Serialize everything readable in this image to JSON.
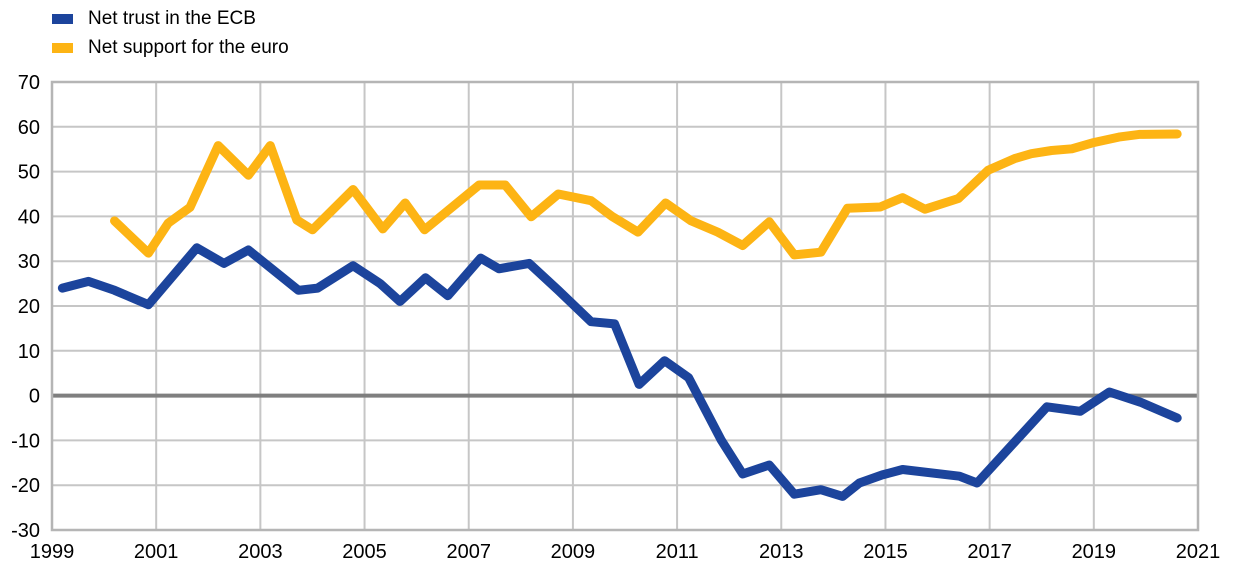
{
  "chart_data": {
    "type": "line",
    "title": "",
    "legend_position": "top-left",
    "grid": true,
    "colors": {
      "background": "#ffffff",
      "grid": "#c6c6c6",
      "border": "#b5b5b5",
      "zero_line": "#7f7f7f",
      "text": "#000000",
      "blue": "#1c449c",
      "yellow": "#fdb414"
    },
    "legend": [
      {
        "id": "net-trust-ecb",
        "label": "Net trust in the ECB",
        "color": "#1c449c"
      },
      {
        "id": "net-support-euro",
        "label": "Net support for the euro",
        "color": "#fdb414"
      }
    ],
    "x_axis": {
      "range": [
        1999,
        2021
      ],
      "ticks": [
        {
          "value": 1999,
          "label": "1999"
        },
        {
          "value": 2001,
          "label": "2001"
        },
        {
          "value": 2003,
          "label": "2003"
        },
        {
          "value": 2005,
          "label": "2005"
        },
        {
          "value": 2007,
          "label": "2007"
        },
        {
          "value": 2009,
          "label": "2009"
        },
        {
          "value": 2011,
          "label": "2011"
        },
        {
          "value": 2013,
          "label": "2013"
        },
        {
          "value": 2015,
          "label": "2015"
        },
        {
          "value": 2017,
          "label": "2017"
        },
        {
          "value": 2019,
          "label": "2019"
        },
        {
          "value": 2021,
          "label": "2021"
        }
      ]
    },
    "y_axis": {
      "range": [
        -30,
        70
      ],
      "ticks": [
        {
          "value": 70,
          "label": "70"
        },
        {
          "value": 60,
          "label": "60"
        },
        {
          "value": 50,
          "label": "50"
        },
        {
          "value": 40,
          "label": "40"
        },
        {
          "value": 30,
          "label": "30"
        },
        {
          "value": 20,
          "label": "20"
        },
        {
          "value": 10,
          "label": "10"
        },
        {
          "value": 0,
          "label": "0"
        },
        {
          "value": -10,
          "label": "-10"
        },
        {
          "value": -20,
          "label": "-20"
        },
        {
          "value": -30,
          "label": "-30"
        }
      ]
    },
    "series": [
      {
        "id": "net-trust-ecb",
        "name": "Net trust in the ECB",
        "color": "#1c449c",
        "points": [
          [
            1999.2,
            24
          ],
          [
            1999.7,
            25.5
          ],
          [
            2000.2,
            23.5
          ],
          [
            2000.85,
            20.3
          ],
          [
            2001.78,
            33
          ],
          [
            2002.3,
            29.5
          ],
          [
            2002.77,
            32.5
          ],
          [
            2003.73,
            23.5
          ],
          [
            2004.1,
            24
          ],
          [
            2004.78,
            29
          ],
          [
            2005.3,
            25
          ],
          [
            2005.68,
            21
          ],
          [
            2006.17,
            26.3
          ],
          [
            2006.6,
            22.3
          ],
          [
            2007.23,
            30.7
          ],
          [
            2007.58,
            28.3
          ],
          [
            2008.16,
            29.5
          ],
          [
            2008.72,
            23.5
          ],
          [
            2009.35,
            16.5
          ],
          [
            2009.8,
            16
          ],
          [
            2010.27,
            2.5
          ],
          [
            2010.76,
            7.8
          ],
          [
            2011.22,
            4
          ],
          [
            2011.85,
            -10
          ],
          [
            2012.26,
            -17.5
          ],
          [
            2012.77,
            -15.5
          ],
          [
            2013.25,
            -22
          ],
          [
            2013.76,
            -21
          ],
          [
            2014.18,
            -22.5
          ],
          [
            2014.5,
            -19.5
          ],
          [
            2014.94,
            -17.7
          ],
          [
            2015.33,
            -16.5
          ],
          [
            2016.42,
            -18
          ],
          [
            2016.76,
            -19.5
          ],
          [
            2018.1,
            -2.5
          ],
          [
            2018.74,
            -3.5
          ],
          [
            2019.3,
            0.8
          ],
          [
            2019.9,
            -1.5
          ],
          [
            2020.6,
            -5
          ]
        ]
      },
      {
        "id": "net-support-euro",
        "name": "Net support for the euro",
        "color": "#fdb414",
        "points": [
          [
            2000.2,
            39
          ],
          [
            2000.85,
            31.8
          ],
          [
            2001.23,
            38.5
          ],
          [
            2001.65,
            42
          ],
          [
            2002.19,
            55.8
          ],
          [
            2002.77,
            49.2
          ],
          [
            2003.19,
            55.8
          ],
          [
            2003.7,
            39.2
          ],
          [
            2004.0,
            37
          ],
          [
            2004.78,
            46
          ],
          [
            2005.35,
            37.2
          ],
          [
            2005.78,
            43
          ],
          [
            2006.15,
            37
          ],
          [
            2007.2,
            47
          ],
          [
            2007.7,
            47
          ],
          [
            2008.2,
            39.9
          ],
          [
            2008.72,
            45
          ],
          [
            2009.35,
            43.5
          ],
          [
            2009.75,
            40
          ],
          [
            2010.25,
            36.5
          ],
          [
            2010.78,
            43
          ],
          [
            2011.27,
            39
          ],
          [
            2011.78,
            36.5
          ],
          [
            2012.26,
            33.5
          ],
          [
            2012.77,
            38.8
          ],
          [
            2013.25,
            31.4
          ],
          [
            2013.76,
            32
          ],
          [
            2014.27,
            41.8
          ],
          [
            2014.9,
            42.1
          ],
          [
            2015.33,
            44.2
          ],
          [
            2015.76,
            41.6
          ],
          [
            2016.4,
            44
          ],
          [
            2016.97,
            50.3
          ],
          [
            2017.48,
            52.9
          ],
          [
            2017.8,
            54
          ],
          [
            2018.19,
            54.7
          ],
          [
            2018.58,
            55.1
          ],
          [
            2018.97,
            56.4
          ],
          [
            2019.48,
            57.7
          ],
          [
            2019.87,
            58.3
          ],
          [
            2020.6,
            58.4
          ]
        ]
      }
    ]
  }
}
